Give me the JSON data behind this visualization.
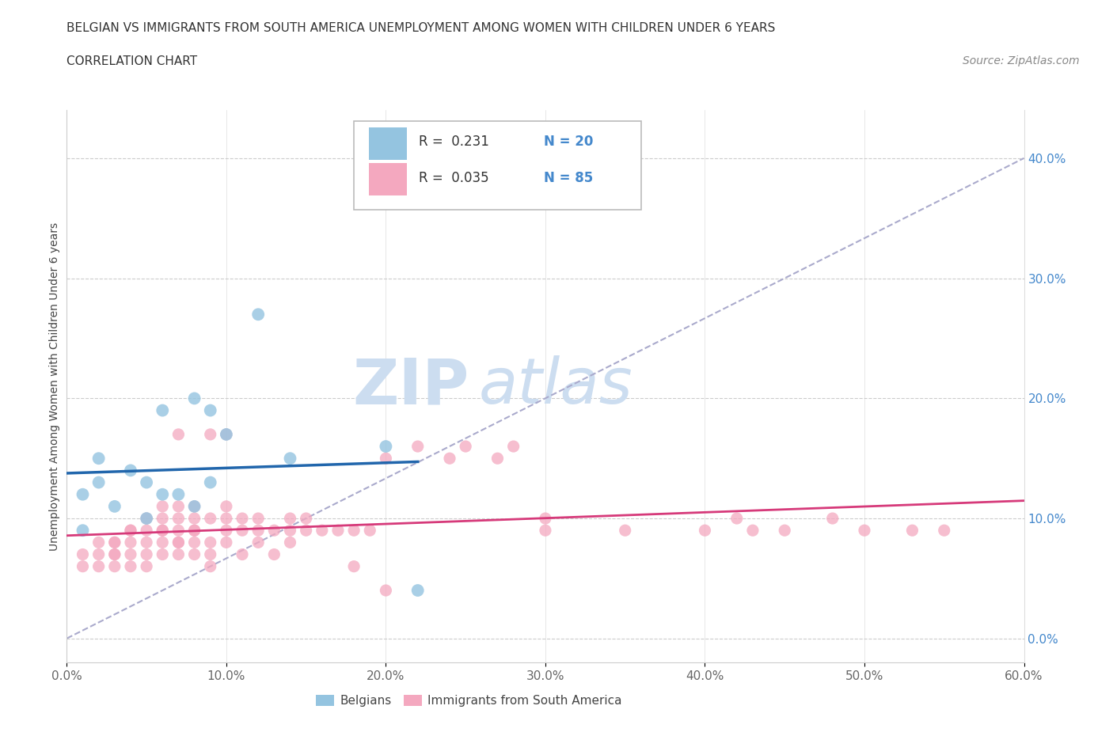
{
  "title_line1": "BELGIAN VS IMMIGRANTS FROM SOUTH AMERICA UNEMPLOYMENT AMONG WOMEN WITH CHILDREN UNDER 6 YEARS",
  "title_line2": "CORRELATION CHART",
  "source_text": "Source: ZipAtlas.com",
  "ylabel": "Unemployment Among Women with Children Under 6 years",
  "xlim": [
    0.0,
    0.6
  ],
  "ylim": [
    -0.02,
    0.44
  ],
  "xticks": [
    0.0,
    0.1,
    0.2,
    0.3,
    0.4,
    0.5,
    0.6
  ],
  "xtick_labels": [
    "0.0%",
    "10.0%",
    "20.0%",
    "30.0%",
    "40.0%",
    "50.0%",
    "60.0%"
  ],
  "yticks": [
    0.0,
    0.1,
    0.2,
    0.3,
    0.4
  ],
  "ytick_labels": [
    "0.0%",
    "10.0%",
    "20.0%",
    "30.0%",
    "40.0%"
  ],
  "belgian_color": "#94c4e0",
  "immigrant_color": "#f4a8bf",
  "trendline_belgian_color": "#2166ac",
  "trendline_immigrant_color": "#d63a7a",
  "trendline_dashed_color": "#aaaacc",
  "watermark_color": "#ccddf0",
  "legend_belgian_label": "Belgians",
  "legend_immigrant_label": "Immigrants from South America",
  "belgian_R": 0.231,
  "belgian_N": 20,
  "immigrant_R": 0.035,
  "immigrant_N": 85,
  "belgian_x": [
    0.01,
    0.01,
    0.02,
    0.02,
    0.03,
    0.04,
    0.05,
    0.05,
    0.06,
    0.06,
    0.07,
    0.08,
    0.08,
    0.09,
    0.09,
    0.1,
    0.12,
    0.14,
    0.2,
    0.22
  ],
  "belgian_y": [
    0.09,
    0.12,
    0.13,
    0.15,
    0.11,
    0.14,
    0.1,
    0.13,
    0.12,
    0.19,
    0.12,
    0.11,
    0.2,
    0.13,
    0.19,
    0.17,
    0.27,
    0.15,
    0.16,
    0.04
  ],
  "immigrant_x": [
    0.01,
    0.01,
    0.02,
    0.02,
    0.02,
    0.03,
    0.03,
    0.03,
    0.03,
    0.03,
    0.04,
    0.04,
    0.04,
    0.04,
    0.04,
    0.05,
    0.05,
    0.05,
    0.05,
    0.05,
    0.06,
    0.06,
    0.06,
    0.06,
    0.06,
    0.06,
    0.07,
    0.07,
    0.07,
    0.07,
    0.07,
    0.07,
    0.08,
    0.08,
    0.08,
    0.08,
    0.08,
    0.08,
    0.09,
    0.09,
    0.09,
    0.09,
    0.1,
    0.1,
    0.1,
    0.1,
    0.11,
    0.11,
    0.11,
    0.12,
    0.12,
    0.12,
    0.13,
    0.13,
    0.14,
    0.14,
    0.14,
    0.15,
    0.15,
    0.16,
    0.17,
    0.18,
    0.19,
    0.2,
    0.22,
    0.24,
    0.25,
    0.27,
    0.28,
    0.3,
    0.3,
    0.35,
    0.4,
    0.42,
    0.43,
    0.45,
    0.48,
    0.5,
    0.53,
    0.55,
    0.07,
    0.09,
    0.1,
    0.18,
    0.2
  ],
  "immigrant_y": [
    0.07,
    0.06,
    0.07,
    0.06,
    0.08,
    0.07,
    0.08,
    0.06,
    0.08,
    0.07,
    0.09,
    0.08,
    0.09,
    0.07,
    0.06,
    0.09,
    0.08,
    0.07,
    0.1,
    0.06,
    0.09,
    0.08,
    0.1,
    0.07,
    0.09,
    0.11,
    0.09,
    0.08,
    0.1,
    0.07,
    0.11,
    0.08,
    0.1,
    0.09,
    0.08,
    0.11,
    0.07,
    0.09,
    0.08,
    0.1,
    0.07,
    0.06,
    0.09,
    0.1,
    0.08,
    0.11,
    0.09,
    0.1,
    0.07,
    0.1,
    0.09,
    0.08,
    0.09,
    0.07,
    0.1,
    0.09,
    0.08,
    0.1,
    0.09,
    0.09,
    0.09,
    0.09,
    0.09,
    0.15,
    0.16,
    0.15,
    0.16,
    0.15,
    0.16,
    0.09,
    0.1,
    0.09,
    0.09,
    0.1,
    0.09,
    0.09,
    0.1,
    0.09,
    0.09,
    0.09,
    0.17,
    0.17,
    0.17,
    0.06,
    0.04
  ]
}
